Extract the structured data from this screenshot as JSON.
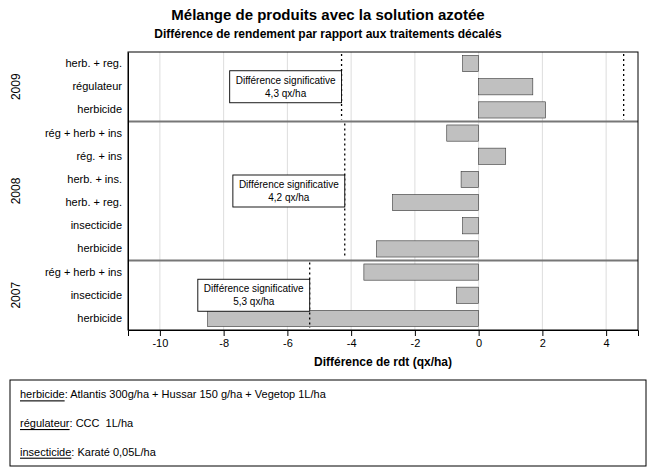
{
  "chart_data": {
    "type": "bar",
    "orientation": "horizontal",
    "title": "Mélange de produits avec la solution azotée",
    "subtitle": "Différence de rendement par rapport aux traitements décalés",
    "xlabel": "Différence de rdt (qx/ha)",
    "xlim": [
      -11.0,
      5.0
    ],
    "xticks": [
      -10,
      -8,
      -6,
      -4,
      -2,
      0,
      2,
      4
    ],
    "grid": true,
    "color": "#c0c0c0",
    "groups": [
      {
        "name": "2009",
        "categories": [
          "herb. + reg.",
          "régulateur",
          "herbicide"
        ],
        "values": [
          -0.5,
          1.7,
          2.1
        ],
        "annotation": [
          "Différence significative",
          "4,3 qx/ha"
        ],
        "significance_lines": [
          -4.3,
          4.55
        ]
      },
      {
        "name": "2008",
        "categories": [
          "rég + herb + ins",
          "rég. + ins",
          "herb. + ins.",
          "herb. + reg.",
          "insecticide",
          "herbicide"
        ],
        "values": [
          -1.0,
          0.85,
          -0.55,
          -2.7,
          -0.5,
          -3.2
        ],
        "annotation": [
          "Différence significative",
          "4,2 qx/ha"
        ],
        "significance_lines": [
          -4.2
        ]
      },
      {
        "name": "2007",
        "categories": [
          "rég + herb + ins",
          "insecticide",
          "herbicide"
        ],
        "values": [
          -3.6,
          -0.7,
          -8.5
        ],
        "annotation": [
          "Différence significative",
          "5,3 qx/ha"
        ],
        "significance_lines": [
          -5.3
        ]
      }
    ],
    "footnotes": [
      {
        "term": "herbicide",
        "text": ": Atlantis 300g/ha + Hussar 150 g/ha + Vegetop 1L/ha"
      },
      {
        "term": "régulateur",
        "text": ": CCC  1L/ha"
      },
      {
        "term": "insecticide",
        "text": ": Karaté 0,05L/ha"
      }
    ]
  }
}
